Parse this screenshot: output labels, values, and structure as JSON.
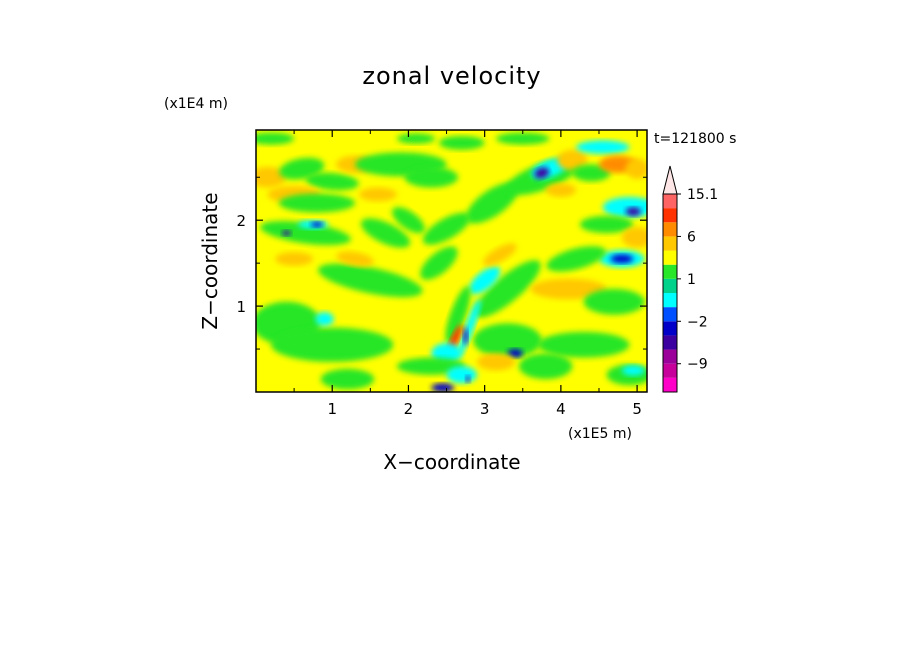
{
  "chart_data": {
    "type": "heatmap",
    "title": "zonal velocity",
    "time_label": "t=121800 s",
    "xlabel": "X−coordinate",
    "ylabel": "Z−coordinate",
    "x_unit": "(x1E5 m)",
    "y_unit": "(x1E4 m)",
    "x_ticks": [
      1,
      2,
      3,
      4,
      5
    ],
    "x_tick_labels": [
      "1",
      "2",
      "3",
      "4",
      "5"
    ],
    "y_ticks": [
      1,
      2
    ],
    "y_tick_labels": [
      "1",
      "2"
    ],
    "xlim": [
      0,
      5.13
    ],
    "ylim": [
      0,
      3.05
    ],
    "colorbar": {
      "levels": [
        -15.1,
        -12,
        -9,
        -6,
        -3,
        -2,
        -1,
        0,
        1,
        2,
        3,
        6,
        9,
        12,
        15.1
      ],
      "tick_labels": [
        "15.1",
        "6",
        "1",
        "−2",
        "−9"
      ],
      "tick_values": [
        15.1,
        6,
        1,
        -2,
        -9
      ],
      "extend": "max",
      "colors": [
        "#ff00c8",
        "#c8009b",
        "#9b009b",
        "#3c00a0",
        "#0000c8",
        "#0050ff",
        "#00ffff",
        "#00d28c",
        "#28e628",
        "#ffff00",
        "#ffc800",
        "#ff8c00",
        "#ff3200",
        "#ff6464",
        "#ffb4b4",
        "#ffe6e6"
      ]
    },
    "grid": false
  }
}
